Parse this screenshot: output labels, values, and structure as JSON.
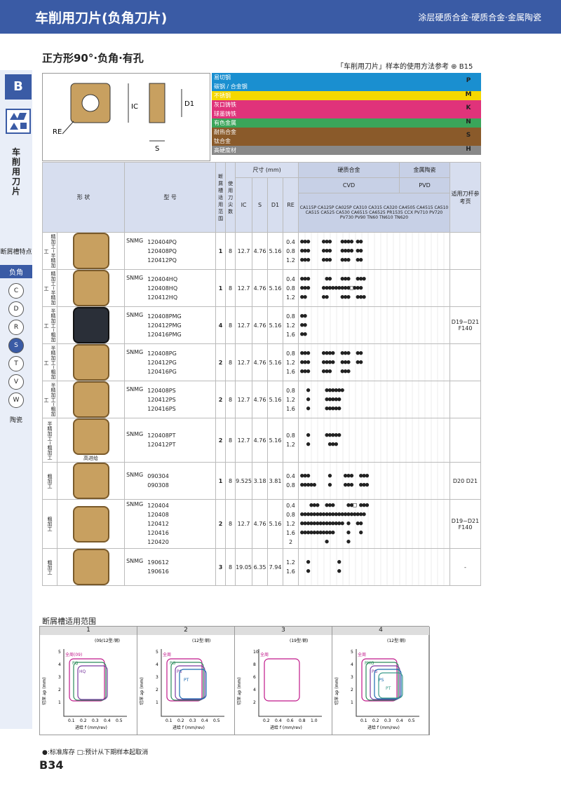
{
  "header": {
    "title": "车削用刀片(负角刀片)",
    "subtitle": "涂层硬质合金·硬质合金·金属陶瓷"
  },
  "sidebar": {
    "letter": "B",
    "vertical_title": "车削用刀片",
    "items": [
      "断屑槽特点",
      "负角",
      "C",
      "D",
      "R",
      "S",
      "T",
      "V",
      "W",
      "陶瓷"
    ]
  },
  "section_title": "正方形90°·负角·有孔",
  "ref_text": "「车削用刀片」样本的使用方法参考 ⊕ B15",
  "drawing_labels": [
    "RE",
    "IC",
    "D1",
    "S"
  ],
  "materials": [
    {
      "name": "易切钢",
      "color": "#1a8fd0",
      "group": "P"
    },
    {
      "name": "碳钢 / 合金钢",
      "color": "#1a8fd0",
      "group": ""
    },
    {
      "name": "不锈钢",
      "color": "#f5d800",
      "group": "M"
    },
    {
      "name": "灰口铸铁",
      "color": "#e0337a",
      "group": "K"
    },
    {
      "name": "球墨铸铁",
      "color": "#e0337a",
      "group": ""
    },
    {
      "name": "有色金属",
      "color": "#3aa55a",
      "group": "N"
    },
    {
      "name": "耐热合金",
      "color": "#8a5a2a",
      "group": "S"
    },
    {
      "name": "钛合金",
      "color": "#8a5a2a",
      "group": ""
    },
    {
      "name": "高硬度材",
      "color": "#888888",
      "group": "H"
    }
  ],
  "table_header": {
    "shape": "形 状",
    "model": "型 号",
    "chip_range": "断屑槽适用范围",
    "edges": "使用刀尖数",
    "dims": "尺寸 (mm)",
    "ic": "IC",
    "s": "S",
    "d1": "D1",
    "re": "RE",
    "carbide": "硬质合金",
    "cermet": "金属陶瓷",
    "cvd": "CVD",
    "pvd": "PVD",
    "pvd_cvd": "PVD CVD",
    "dash": "-",
    "holder": "适用刀杆参考页"
  },
  "grades": [
    "CA115P",
    "CA125P",
    "CA025P",
    "CA310",
    "CA315",
    "CA320",
    "CA4505",
    "CA4515",
    "CA510",
    "CA515",
    "CA525",
    "CA530",
    "CA6515",
    "CA6525",
    "PR1535",
    "CCX",
    "PV710",
    "PV720",
    "PV730",
    "PV90",
    "TN60",
    "TN610",
    "TN620"
  ],
  "rows": [
    {
      "cat": "精加工~半精加工",
      "series": "SNMG",
      "models": [
        "120404PQ",
        "120408PQ",
        "120412PQ"
      ],
      "range": "1",
      "edges": "8",
      "ic": "12.7",
      "s": "4.76",
      "d1": "5.16",
      "re": [
        "0.4",
        "0.8",
        "1.2"
      ],
      "dots": [
        "●●●    ●●●   ●●●● ●●",
        "●●●    ●●●   ●●●● ●●",
        "●●●    ●●●   ●●●  ●●"
      ],
      "holder": ""
    },
    {
      "cat": "精加工~半精加工",
      "series": "SNMG",
      "models": [
        "120404HQ",
        "120408HQ",
        "120412HQ"
      ],
      "range": "1",
      "edges": "8",
      "ic": "12.7",
      "s": "4.76",
      "d1": "5.16",
      "re": [
        "0.4",
        "0.8",
        "1.2"
      ],
      "dots": [
        "●●●     ●●   ●●●  ●●●",
        "●●●    ●●●●●●●●●□●●●",
        "●●     ●●    ●●●  ●●●"
      ],
      "holder": ""
    },
    {
      "cat": "半精加工~粗加工",
      "series": "SNMG",
      "models": [
        "120408PMG",
        "120412PMG",
        "120416PMG"
      ],
      "range": "4",
      "edges": "8",
      "ic": "12.7",
      "s": "4.76",
      "d1": "5.16",
      "re": [
        "0.8",
        "1.2",
        "1.6"
      ],
      "dots": [
        "●●",
        "●●",
        "●●"
      ],
      "holder": "D19~D21 F140"
    },
    {
      "cat": "半精加工~粗加工",
      "series": "SNMG",
      "models": [
        "120408PG",
        "120412PG",
        "120416PG"
      ],
      "range": "2",
      "edges": "8",
      "ic": "12.7",
      "s": "4.76",
      "d1": "5.16",
      "re": [
        "0.8",
        "1.2",
        "1.6"
      ],
      "dots": [
        "●●●    ●●●●  ●●●  ●●",
        "●●●    ●●●●  ●●●  ●●",
        "●●●    ●●●   ●●●   "
      ],
      "holder": ""
    },
    {
      "cat": "半精加工~粗加工",
      "series": "SNMG",
      "models": [
        "120408PS",
        "120412PS",
        "120416PS"
      ],
      "range": "2",
      "edges": "8",
      "ic": "12.7",
      "s": "4.76",
      "d1": "5.16",
      "re": [
        "0.8",
        "1.2",
        "1.6"
      ],
      "dots": [
        "  ●     ●●●●●●",
        "  ●     ●●●●●",
        "  ●     ●●●●●"
      ],
      "holder": ""
    },
    {
      "cat": "半精加工~粗加工",
      "series": "SNMG",
      "models": [
        "120408PT",
        "120412PT"
      ],
      "range": "2",
      "edges": "8",
      "ic": "12.7",
      "s": "4.76",
      "d1": "5.16",
      "re": [
        "0.8",
        "1.2"
      ],
      "dots": [
        "  ●     ●●●●●",
        "  ●      ●●●"
      ],
      "holder": "",
      "note": "高进给"
    },
    {
      "cat": "粗加工",
      "series": "SNMG",
      "models": [
        "090304",
        "090308"
      ],
      "range": "1",
      "edges": "8",
      "ic": "9.525",
      "s": "3.18",
      "d1": "3.81",
      "re": [
        "0.4",
        "0.8"
      ],
      "dots": [
        "●●●      ●    ●●●  ●●●",
        "●●●●●    ●    ●●●  ●●●"
      ],
      "holder": "D20 D21"
    },
    {
      "cat": "粗加工",
      "series": "SNMG",
      "models": [
        "120404",
        "120408",
        "120412",
        "120416",
        "120420"
      ],
      "range": "2",
      "edges": "8",
      "ic": "12.7",
      "s": "4.76",
      "d1": "5.16",
      "re": [
        "0.4",
        "0.8",
        "1.2",
        "1.6",
        "2"
      ],
      "dots": [
        "   ●●●  ●●●    ●●□ ●●●",
        "●●●●●●●●●●●●●●●●●●●●●",
        "●●●●●●●●●●●●●● ●  ●● ",
        "●●●●●●●●●●●    ●   ●  ",
        "        ●      ●      "
      ],
      "holder": "D19~D21 F140"
    },
    {
      "cat": "粗加工",
      "series": "SNMG",
      "models": [
        "190612",
        "190616"
      ],
      "range": "3",
      "edges": "8",
      "ic": "19.05",
      "s": "6.35",
      "d1": "7.94",
      "re": [
        "1.2",
        "1.6"
      ],
      "dots": [
        "  ●         ●",
        "  ●         ●"
      ],
      "holder": "-"
    }
  ],
  "chip_section_title": "断屑槽适用范围",
  "graphs": [
    {
      "num": "1",
      "note": "(09/12型:钢)",
      "labels": [
        "全周(09)",
        "PQ",
        "HQ"
      ],
      "ylabel": "切深 ap (mm)",
      "xlabel": "进给 f (mm/rev)",
      "yticks": [
        "5",
        "4",
        "3",
        "2",
        "1"
      ],
      "xticks": [
        "0.1",
        "0.2",
        "0.3",
        "0.4",
        "0.5"
      ]
    },
    {
      "num": "2",
      "note": "(12型:钢)",
      "labels": [
        "全周",
        "PG",
        "PS",
        "PT"
      ],
      "ylabel": "切深 ap (mm)",
      "xlabel": "进给 f (mm/rev)",
      "yticks": [
        "5",
        "4",
        "3",
        "2",
        "1"
      ],
      "xticks": [
        "0.1",
        "0.2",
        "0.3",
        "0.4",
        "0.5"
      ]
    },
    {
      "num": "3",
      "note": "(19型:钢)",
      "labels": [
        "全周"
      ],
      "ylabel": "切深 ap (mm)",
      "xlabel": "进给 f (mm/rev)",
      "yticks": [
        "10",
        "8",
        "6",
        "4",
        "2"
      ],
      "xticks": [
        "0.2",
        "0.4",
        "0.6",
        "0.8",
        "1.0"
      ]
    },
    {
      "num": "4",
      "note": "(12型:钢)",
      "labels": [
        "全周",
        "PMG",
        "PG",
        "PS",
        "PT"
      ],
      "ylabel": "切深 ap (mm)",
      "xlabel": "进给 f (mm/rev)",
      "yticks": [
        "5",
        "4",
        "3",
        "2",
        "1"
      ],
      "xticks": [
        "0.1",
        "0.2",
        "0.3",
        "0.4",
        "0.5"
      ]
    }
  ],
  "footnote": "●:标准库存 □:预计从下期样本起取消",
  "page_number": "B34"
}
